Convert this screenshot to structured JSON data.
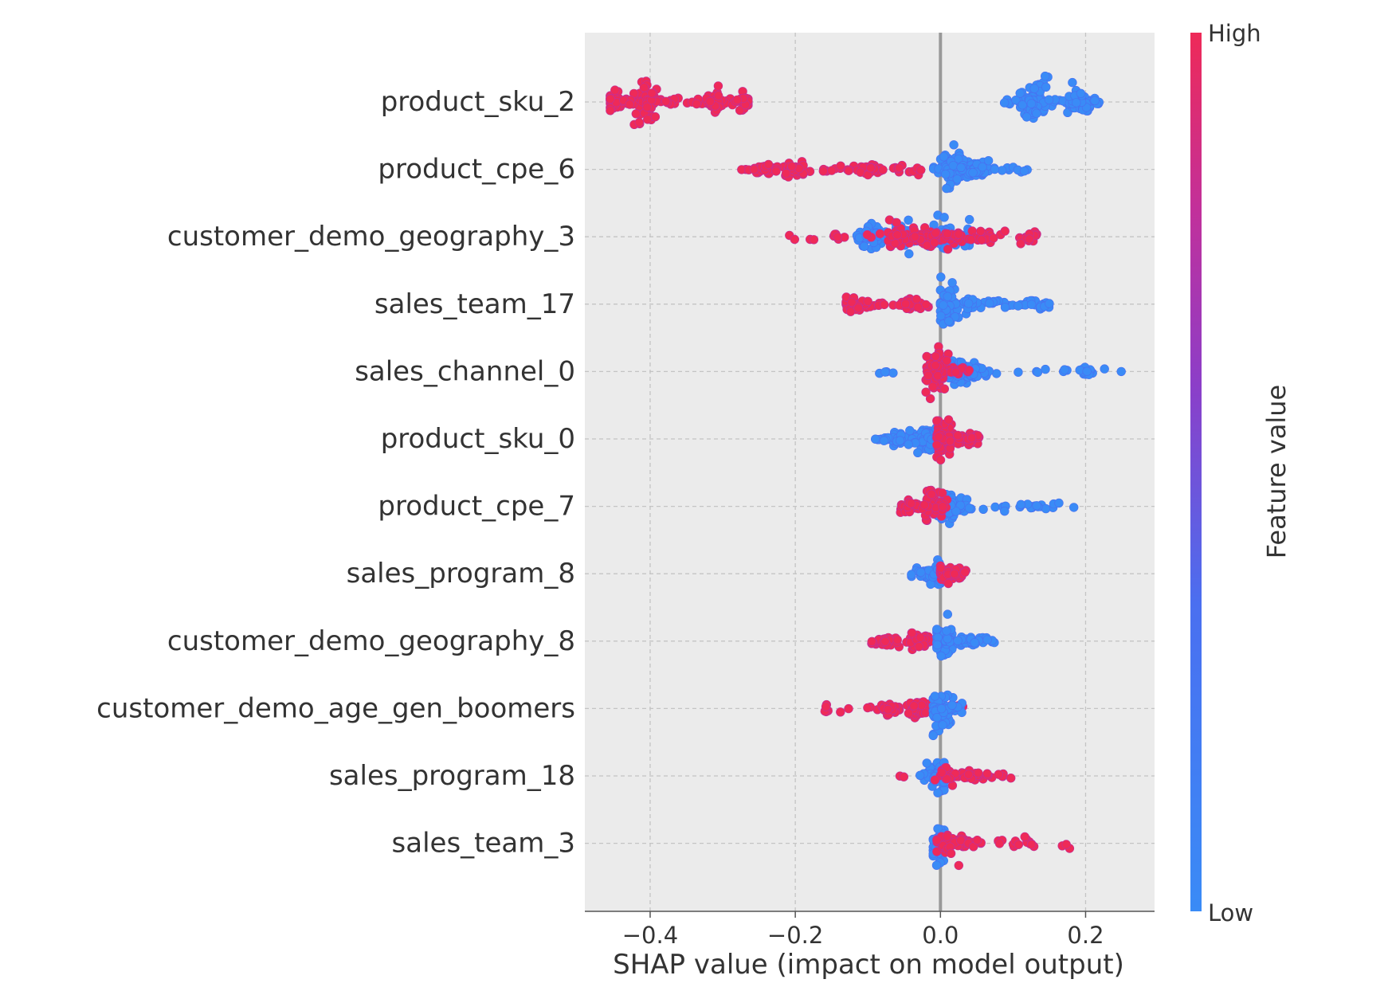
{
  "chart_data": {
    "type": "scatter",
    "subtype": "shap-beeswarm-summary",
    "xlabel": "SHAP value (impact on model output)",
    "xlim": [
      -0.49,
      0.295
    ],
    "xticks": [
      -0.4,
      -0.2,
      0.0,
      0.2
    ],
    "xtick_labels": [
      "−0.4",
      "−0.2",
      "0.0",
      "0.2"
    ],
    "features": [
      "product_sku_2",
      "product_cpe_6",
      "customer_demo_geography_3",
      "sales_team_17",
      "sales_channel_0",
      "product_sku_0",
      "product_cpe_7",
      "sales_program_8",
      "customer_demo_geography_8",
      "customer_demo_age_gen_boomers",
      "sales_program_18",
      "sales_team_3"
    ],
    "colorbar": {
      "label": "Feature value",
      "high_label": "High",
      "low_label": "Low",
      "high_color": "#ff0052",
      "low_color": "#008bfb"
    },
    "grid": true,
    "zero_line": true,
    "feature_clusters": [
      [
        {
          "color": "high",
          "min": -0.455,
          "max": -0.265,
          "peaks": [
            {
              "x": -0.45,
              "w": 1.8
            },
            {
              "x": -0.405,
              "w": 3.5
            },
            {
              "x": -0.31,
              "w": 1.6
            },
            {
              "x": -0.27,
              "w": 1.4
            }
          ],
          "n": 180
        },
        {
          "color": "low",
          "min": 0.085,
          "max": 0.22,
          "peaks": [
            {
              "x": 0.13,
              "w": 3.4
            },
            {
              "x": 0.19,
              "w": 2.0
            }
          ],
          "n": 170
        }
      ],
      [
        {
          "color": "high",
          "min": -0.275,
          "max": -0.02,
          "peaks": [
            {
              "x": -0.24,
              "w": 1.0
            },
            {
              "x": -0.2,
              "w": 1.3
            },
            {
              "x": -0.1,
              "w": 0.9
            }
          ],
          "n": 130
        },
        {
          "color": "low",
          "min": -0.01,
          "max": 0.12,
          "peaks": [
            {
              "x": 0.02,
              "w": 3.0
            },
            {
              "x": 0.05,
              "w": 1.4
            }
          ],
          "n": 140
        }
      ],
      [
        {
          "color": "low",
          "min": -0.12,
          "max": 0.04,
          "peaks": [
            {
              "x": -0.09,
              "w": 2.2
            },
            {
              "x": -0.05,
              "w": 2.6
            },
            {
              "x": 0.0,
              "w": 2.4
            },
            {
              "x": 0.04,
              "w": 2.0
            }
          ],
          "n": 170
        },
        {
          "color": "high",
          "min": -0.21,
          "max": 0.145,
          "peaks": [
            {
              "x": -0.06,
              "w": 2.0
            },
            {
              "x": -0.02,
              "w": 1.8
            },
            {
              "x": 0.02,
              "w": 1.6
            },
            {
              "x": 0.06,
              "w": 1.0
            },
            {
              "x": 0.12,
              "w": 1.0
            }
          ],
          "n": 150
        }
      ],
      [
        {
          "color": "high",
          "min": -0.13,
          "max": -0.015,
          "peaks": [
            {
              "x": -0.12,
              "w": 1.0
            },
            {
              "x": -0.04,
              "w": 1.0
            }
          ],
          "n": 90
        },
        {
          "color": "low",
          "min": 0.0,
          "max": 0.15,
          "peaks": [
            {
              "x": 0.01,
              "w": 3.2
            },
            {
              "x": 0.04,
              "w": 1.2
            },
            {
              "x": 0.145,
              "w": 0.6
            }
          ],
          "n": 110
        }
      ],
      [
        {
          "color": "low",
          "min": -0.09,
          "max": 0.26,
          "peaks": [
            {
              "x": 0.02,
              "w": 2.0
            },
            {
              "x": 0.05,
              "w": 1.3
            },
            {
              "x": 0.2,
              "w": 0.6
            }
          ],
          "n": 120
        },
        {
          "color": "high",
          "min": -0.02,
          "max": 0.04,
          "peaks": [
            {
              "x": -0.005,
              "w": 3.4
            }
          ],
          "n": 90
        }
      ],
      [
        {
          "color": "low",
          "min": -0.09,
          "max": 0.0,
          "peaks": [
            {
              "x": -0.02,
              "w": 2.2
            },
            {
              "x": -0.06,
              "w": 1.0
            }
          ],
          "n": 110
        },
        {
          "color": "high",
          "min": -0.005,
          "max": 0.055,
          "peaks": [
            {
              "x": 0.005,
              "w": 3.2
            },
            {
              "x": 0.03,
              "w": 1.0
            }
          ],
          "n": 110
        }
      ],
      [
        {
          "color": "low",
          "min": -0.02,
          "max": 0.185,
          "peaks": [
            {
              "x": 0.01,
              "w": 2.4
            },
            {
              "x": 0.03,
              "w": 1.0
            },
            {
              "x": 0.13,
              "w": 0.5
            }
          ],
          "n": 90
        },
        {
          "color": "high",
          "min": -0.055,
          "max": 0.01,
          "peaks": [
            {
              "x": -0.01,
              "w": 2.8
            },
            {
              "x": -0.04,
              "w": 1.0
            }
          ],
          "n": 90
        }
      ],
      [
        {
          "color": "low",
          "min": -0.04,
          "max": 0.0,
          "peaks": [
            {
              "x": -0.005,
              "w": 2.2
            },
            {
              "x": -0.03,
              "w": 1.0
            }
          ],
          "n": 60
        },
        {
          "color": "high",
          "min": 0.0,
          "max": 0.035,
          "peaks": [
            {
              "x": 0.01,
              "w": 1.6
            },
            {
              "x": 0.025,
              "w": 1.0
            }
          ],
          "n": 60
        }
      ],
      [
        {
          "color": "high",
          "min": -0.095,
          "max": 0.0,
          "peaks": [
            {
              "x": -0.03,
              "w": 1.2
            },
            {
              "x": -0.08,
              "w": 0.8
            }
          ],
          "n": 100
        },
        {
          "color": "low",
          "min": -0.005,
          "max": 0.075,
          "peaks": [
            {
              "x": 0.005,
              "w": 3.0
            },
            {
              "x": 0.04,
              "w": 0.7
            }
          ],
          "n": 90
        }
      ],
      [
        {
          "color": "high",
          "min": -0.17,
          "max": 0.045,
          "peaks": [
            {
              "x": -0.03,
              "w": 1.3
            },
            {
              "x": -0.07,
              "w": 0.9
            }
          ],
          "n": 110
        },
        {
          "color": "low",
          "min": -0.01,
          "max": 0.03,
          "peaks": [
            {
              "x": 0.003,
              "w": 3.0
            }
          ],
          "n": 70
        }
      ],
      [
        {
          "color": "low",
          "min": -0.03,
          "max": 0.005,
          "peaks": [
            {
              "x": -0.002,
              "w": 2.6
            }
          ],
          "n": 50
        },
        {
          "color": "high",
          "min": -0.075,
          "max": 0.1,
          "peaks": [
            {
              "x": 0.01,
              "w": 1.2
            },
            {
              "x": 0.04,
              "w": 0.8
            }
          ],
          "n": 60
        }
      ],
      [
        {
          "color": "low",
          "min": -0.01,
          "max": 0.005,
          "peaks": [
            {
              "x": -0.002,
              "w": 3.0
            }
          ],
          "n": 60
        },
        {
          "color": "high",
          "min": -0.005,
          "max": 0.185,
          "peaks": [
            {
              "x": 0.01,
              "w": 1.8
            },
            {
              "x": 0.035,
              "w": 0.9
            },
            {
              "x": 0.12,
              "w": 0.5
            }
          ],
          "n": 80
        }
      ]
    ]
  }
}
